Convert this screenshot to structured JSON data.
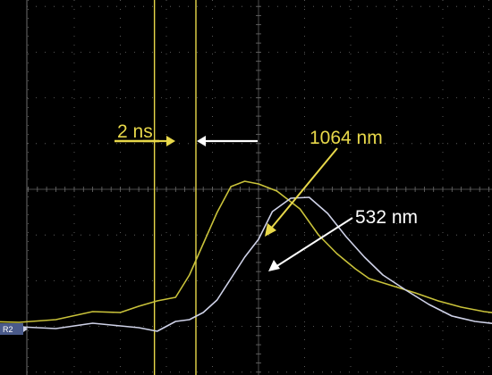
{
  "chart_data": {
    "type": "line",
    "x_unit": "ns",
    "cursors": [
      -0.9,
      0.0
    ],
    "ref_label": "R2",
    "colors": {
      "background": "#000000",
      "grid": "#6e6e6e",
      "cursor": "#e8d84a",
      "series_1064": "#c9c23a",
      "series_532": "#cfd2e8",
      "annotation_white": "#ffffff"
    },
    "series": [
      {
        "name": "1064 nm",
        "x": [
          -10.4,
          -9.6,
          -9.0,
          -8.4,
          -7.6,
          -6.8,
          -6.0,
          -5.2,
          -4.4,
          -3.6,
          -3.0,
          -2.6,
          -2.2,
          -1.8,
          -1.5,
          -1.2,
          -0.9,
          -0.6,
          -0.3,
          0.0,
          0.4,
          0.9,
          1.3,
          1.7,
          2.1,
          2.4,
          2.9,
          3.4,
          3.9,
          4.4,
          4.9,
          5.4,
          5.9,
          6.4,
          6.9,
          7.4,
          7.9,
          8.4,
          8.9,
          9.4,
          9.9,
          10.4
        ],
        "y": [
          0.05,
          0.1,
          0.06,
          0.14,
          0.1,
          0.08,
          0.16,
          0.14,
          0.2,
          0.38,
          0.36,
          0.5,
          0.62,
          0.7,
          1.2,
          1.9,
          2.6,
          3.18,
          3.3,
          3.24,
          3.08,
          2.68,
          2.1,
          1.68,
          1.34,
          1.12,
          0.96,
          0.8,
          0.62,
          0.48,
          0.38,
          0.32,
          0.28,
          0.24,
          0.18,
          0.22,
          0.12,
          0.08,
          0.06,
          0.04,
          0.06,
          0.02
        ]
      },
      {
        "name": "532 nm",
        "x": [
          -10.4,
          -9.6,
          -9.0,
          -8.4,
          -7.6,
          -6.8,
          -6.0,
          -5.2,
          -4.4,
          -3.6,
          -3.0,
          -2.6,
          -2.2,
          -1.8,
          -1.5,
          -1.2,
          -0.9,
          -0.6,
          -0.3,
          0.0,
          0.3,
          0.7,
          1.1,
          1.5,
          1.9,
          2.3,
          2.7,
          3.2,
          3.7,
          4.2,
          4.7,
          5.2,
          5.7,
          6.2,
          6.7,
          7.2,
          7.7,
          8.2,
          8.7,
          9.2,
          9.7,
          10.4
        ],
        "y": [
          0.05,
          0.08,
          0.02,
          0.06,
          0.08,
          0.02,
          0.1,
          0.04,
          0.0,
          0.12,
          0.06,
          0.02,
          -0.06,
          0.16,
          0.2,
          0.36,
          0.64,
          1.12,
          1.6,
          2.0,
          2.62,
          2.92,
          2.94,
          2.58,
          2.06,
          1.6,
          1.2,
          0.86,
          0.54,
          0.28,
          0.16,
          0.1,
          0.08,
          0.14,
          0.2,
          0.06,
          0.04,
          -0.06,
          0.04,
          0.02,
          0.0,
          0.02
        ]
      }
    ],
    "annotations": [
      {
        "text": "2 ns"
      },
      {
        "text": "1064 nm"
      },
      {
        "text": "532 nm"
      }
    ]
  }
}
